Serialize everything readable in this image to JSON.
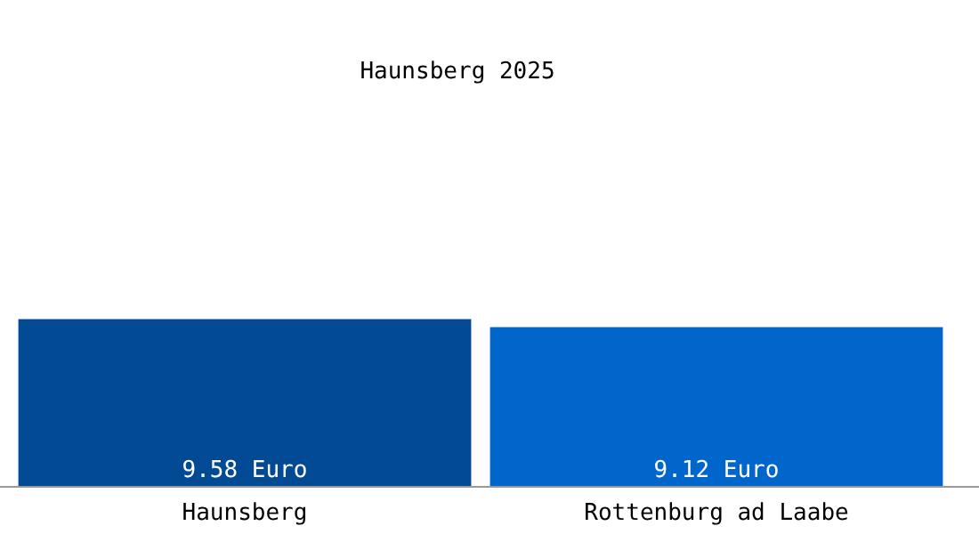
{
  "chart_data": {
    "type": "bar",
    "title": "Haunsberg 2025",
    "categories": [
      "Haunsberg",
      "Rottenburg ad Laabe"
    ],
    "values": [
      9.58,
      9.12
    ],
    "colors": [
      "#034a94",
      "#0066cc"
    ],
    "value_labels": [
      "9.58 Euro",
      "9.12 Euro"
    ]
  }
}
